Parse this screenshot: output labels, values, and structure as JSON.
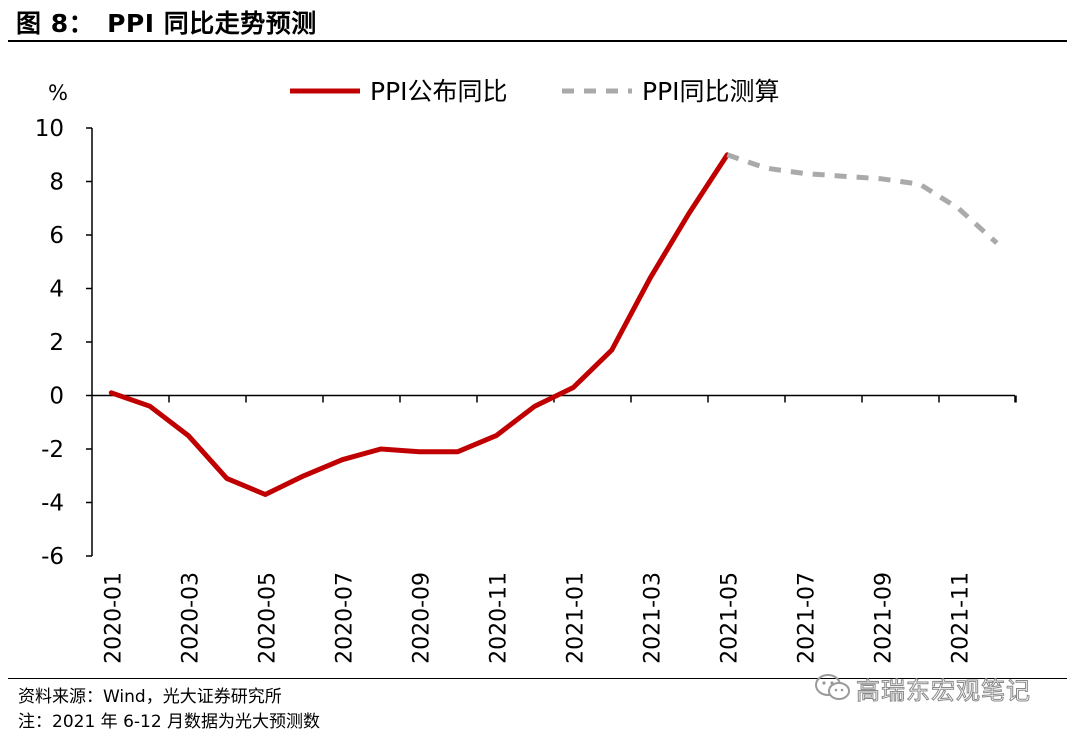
{
  "header": {
    "title": "图 8：　PPI 同比走势预测"
  },
  "footer": {
    "source": "资料来源：Wind，光大证券研究所",
    "note": "注：2021 年 6-12 月数据为光大预测数"
  },
  "watermark": {
    "text": "高瑞东宏观笔记",
    "icon": "wechat-icon"
  },
  "chart_data": {
    "type": "line",
    "ylabel": "%",
    "ylim": [
      -6,
      10
    ],
    "yticks": [
      10,
      8,
      6,
      4,
      2,
      0,
      -2,
      -4,
      -6
    ],
    "x_tick_labels": [
      "2020-01",
      "2020-03",
      "2020-05",
      "2020-07",
      "2020-09",
      "2020-11",
      "2021-01",
      "2021-03",
      "2021-05",
      "2021-07",
      "2021-09",
      "2021-11"
    ],
    "months": [
      "2020-01",
      "2020-02",
      "2020-03",
      "2020-04",
      "2020-05",
      "2020-06",
      "2020-07",
      "2020-08",
      "2020-09",
      "2020-10",
      "2020-11",
      "2020-12",
      "2021-01",
      "2021-02",
      "2021-03",
      "2021-04",
      "2021-05",
      "2021-06",
      "2021-07",
      "2021-08",
      "2021-09",
      "2021-10",
      "2021-11",
      "2021-12"
    ],
    "legend_position": "top",
    "grid": false,
    "series": [
      {
        "name": "PPI公布同比",
        "style": "solid",
        "color": "#C00000",
        "x": [
          "2020-01",
          "2020-02",
          "2020-03",
          "2020-04",
          "2020-05",
          "2020-06",
          "2020-07",
          "2020-08",
          "2020-09",
          "2020-10",
          "2020-11",
          "2020-12",
          "2021-01",
          "2021-02",
          "2021-03",
          "2021-04",
          "2021-05"
        ],
        "values": [
          0.1,
          -0.4,
          -1.5,
          -3.1,
          -3.7,
          -3.0,
          -2.4,
          -2.0,
          -2.1,
          -2.1,
          -1.5,
          -0.4,
          0.3,
          1.7,
          4.4,
          6.8,
          9.0
        ]
      },
      {
        "name": "PPI同比测算",
        "style": "dashed",
        "color": "#AAAAAA",
        "x": [
          "2021-05",
          "2021-06",
          "2021-07",
          "2021-08",
          "2021-09",
          "2021-10",
          "2021-11",
          "2021-12"
        ],
        "values": [
          9.0,
          8.5,
          8.3,
          8.2,
          8.1,
          7.9,
          7.0,
          5.7
        ]
      }
    ]
  }
}
